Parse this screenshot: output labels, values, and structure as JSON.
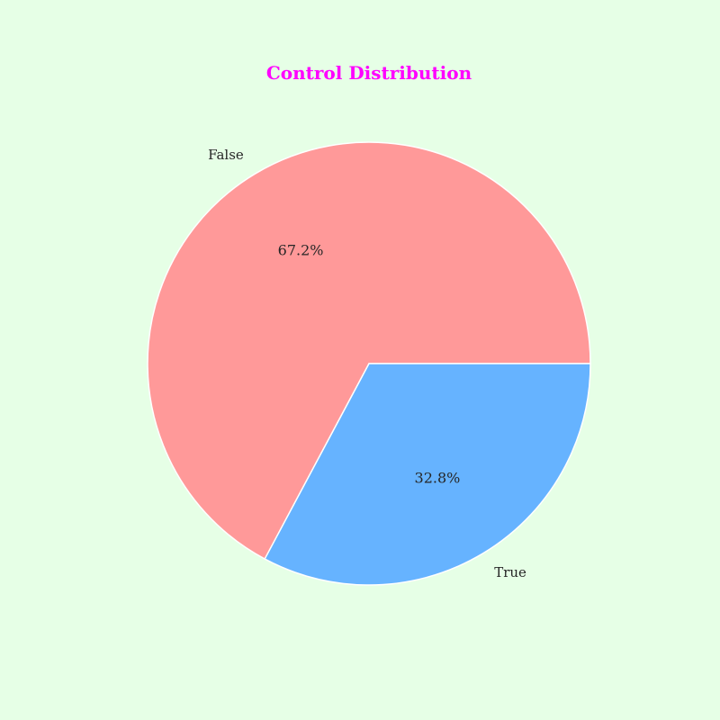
{
  "chart_data": {
    "type": "pie",
    "title": "Control Distribution",
    "labels": [
      "False",
      "True"
    ],
    "values": [
      67.2,
      32.8
    ],
    "percent_labels": [
      "67.2%",
      "32.8%"
    ],
    "colors": [
      "#ff9999",
      "#66b3ff"
    ],
    "title_color": "#ff00ff",
    "background": "#e6ffe6",
    "edge_color": "#ffffff",
    "start_angle_deg": 0,
    "direction": "counterclockwise"
  }
}
